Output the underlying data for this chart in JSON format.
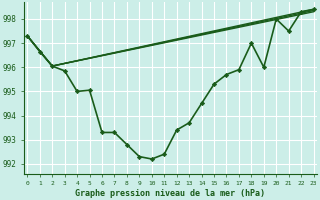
{
  "background_color": "#cceee8",
  "grid_color": "#ffffff",
  "line_color": "#1a5c1a",
  "marker_color": "#1a5c1a",
  "xlabel": "Graphe pression niveau de la mer (hPa)",
  "xlabel_fontsize": 6.0,
  "ylim": [
    991.6,
    998.7
  ],
  "xlim": [
    -0.3,
    23.3
  ],
  "yticks": [
    992,
    993,
    994,
    995,
    996,
    997,
    998
  ],
  "xticks": [
    0,
    1,
    2,
    3,
    4,
    5,
    6,
    7,
    8,
    9,
    10,
    11,
    12,
    13,
    14,
    15,
    16,
    17,
    18,
    19,
    20,
    21,
    22,
    23
  ],
  "series": [
    {
      "x": [
        0,
        1,
        2,
        3,
        4,
        5,
        6,
        7,
        8,
        9,
        10,
        11,
        12,
        13,
        14,
        15,
        16,
        17,
        18,
        19,
        20,
        21,
        22,
        23
      ],
      "y": [
        997.3,
        996.65,
        996.05,
        995.85,
        995.0,
        995.05,
        993.3,
        993.3,
        992.8,
        992.3,
        992.2,
        992.4,
        993.4,
        993.7,
        994.5,
        995.3,
        995.7,
        995.9,
        997.0,
        996.0,
        998.0,
        997.5,
        998.3,
        998.4
      ],
      "marker": "D",
      "markersize": 2.2,
      "linewidth": 1.2,
      "zorder": 5
    },
    {
      "x": [
        0,
        2,
        23
      ],
      "y": [
        997.3,
        996.05,
        998.4
      ],
      "marker": null,
      "markersize": 0,
      "linewidth": 1.0,
      "zorder": 2
    },
    {
      "x": [
        0,
        2,
        23
      ],
      "y": [
        997.3,
        996.05,
        998.35
      ],
      "marker": null,
      "markersize": 0,
      "linewidth": 1.0,
      "zorder": 2
    },
    {
      "x": [
        0,
        2,
        23
      ],
      "y": [
        997.3,
        996.05,
        998.3
      ],
      "marker": null,
      "markersize": 0,
      "linewidth": 1.0,
      "zorder": 2
    }
  ]
}
